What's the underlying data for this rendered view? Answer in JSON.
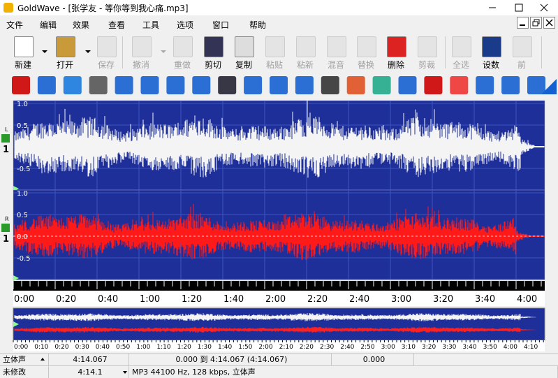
{
  "window": {
    "title": "GoldWave - [张学友 - 等你等到我心痛.mp3]"
  },
  "menu": [
    "文件",
    "编辑",
    "效果",
    "查看",
    "工具",
    "选项",
    "窗口",
    "帮助"
  ],
  "toolbar": [
    {
      "label": "新建"
    },
    {
      "label": "打开"
    },
    {
      "label": "保存",
      "disabled": true
    },
    {
      "label": "撤消",
      "disabled": true
    },
    {
      "label": "重做",
      "disabled": true
    },
    {
      "label": "剪切"
    },
    {
      "label": "复制"
    },
    {
      "label": "粘贴",
      "disabled": true
    },
    {
      "label": "粘新",
      "disabled": true
    },
    {
      "label": "混音",
      "disabled": true
    },
    {
      "label": "替换",
      "disabled": true
    },
    {
      "label": "删除"
    },
    {
      "label": "剪裁",
      "disabled": true
    },
    {
      "label": "全选",
      "disabled": true
    },
    {
      "label": "设数"
    },
    {
      "label": "前",
      "disabled": true
    }
  ],
  "channels": [
    {
      "name": "L",
      "number": "1",
      "axis_labels": [
        "1.0",
        "0.5",
        "-0.5"
      ]
    },
    {
      "name": "R",
      "number": "1",
      "axis_labels": [
        "1.0",
        "0.5",
        "0.0",
        "-0.5"
      ]
    }
  ],
  "timeline": [
    "0:00",
    "0:20",
    "0:40",
    "1:00",
    "1:20",
    "1:40",
    "2:00",
    "2:20",
    "2:40",
    "3:00",
    "3:20",
    "3:40",
    "4:00"
  ],
  "overview_timeline": [
    "0:00",
    "0:10",
    "0:20",
    "0:30",
    "0:40",
    "0:50",
    "1:00",
    "1:10",
    "1:20",
    "1:30",
    "1:40",
    "1:50",
    "2:00",
    "2:10",
    "2:20",
    "2:30",
    "2:40",
    "2:50",
    "3:00",
    "3:10",
    "3:20",
    "3:30",
    "3:40",
    "3:50",
    "4:00",
    "4:10"
  ],
  "status": {
    "row1": [
      "立体声",
      "4:14.067",
      "0.000 到 4:14.067 (4:14.067)",
      "0.000"
    ],
    "row2": [
      "未修改",
      "4:14.1",
      "MP3 44100 Hz, 128 kbps, 立体声"
    ]
  }
}
